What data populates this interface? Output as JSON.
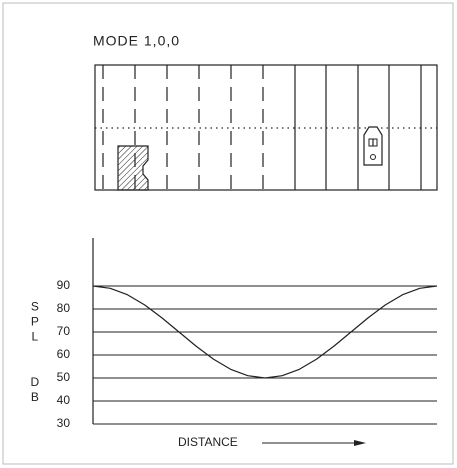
{
  "chart_data": {
    "type": "line",
    "title": "MODE 1,0,0",
    "ylabel": [
      "SPL",
      "DB"
    ],
    "xlabel": "DISTANCE",
    "x": [
      0,
      1,
      2,
      3,
      4,
      5,
      6,
      7,
      8,
      9,
      10,
      11,
      12,
      13,
      14,
      15,
      16,
      17,
      18,
      19,
      20
    ],
    "values": [
      90,
      89,
      86.2,
      81.8,
      76.2,
      70,
      63.8,
      58.2,
      53.8,
      51,
      50,
      51,
      53.8,
      58.2,
      63.8,
      70,
      76.2,
      81.8,
      86.2,
      89,
      90
    ],
    "color": "#222222",
    "xlim": [
      0,
      20
    ],
    "ylim": [
      30,
      110
    ],
    "yticks": [
      30,
      40,
      50,
      60,
      70,
      80,
      90
    ],
    "grid": true
  }
}
